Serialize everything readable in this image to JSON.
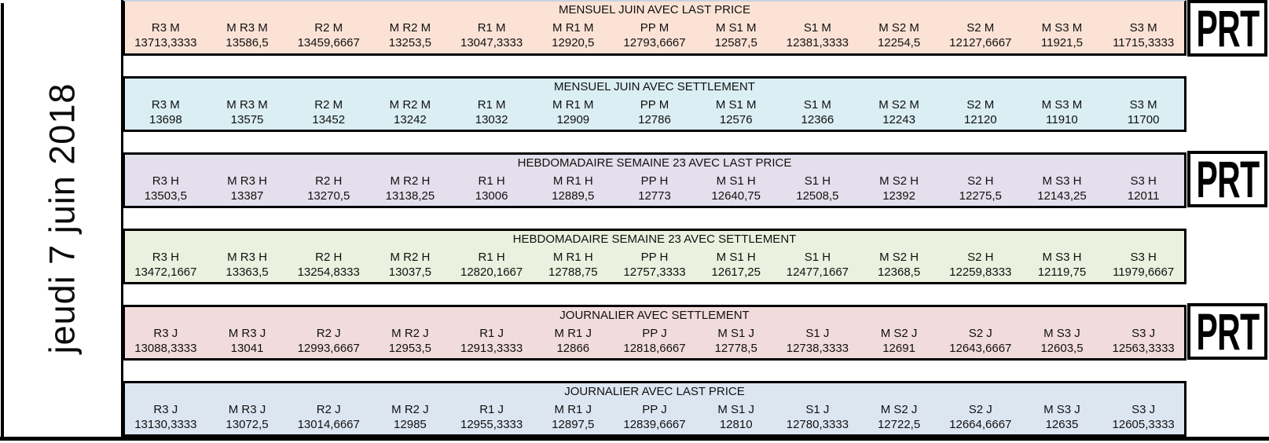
{
  "date_label": "jeudi 7 juin 2018",
  "prt_label": "PRT",
  "colors": {
    "background": "#ffffff",
    "border": "#000000",
    "text": "#111111",
    "band_mensuel_last_price": "#fbe2d5",
    "band_mensuel_settlement": "#daeef3",
    "band_hebdo_last_price": "#e4dfec",
    "band_hebdo_settlement": "#ebf1de",
    "band_journalier_settlement": "#f2dcdb",
    "band_journalier_last_price": "#dce6f1"
  },
  "bands": [
    {
      "name": "mensuel-last-price",
      "title": "MENSUEL JUIN AVEC LAST PRICE",
      "bg": "#fbe2d5",
      "prt": true,
      "headers": [
        "R3 M",
        "M R3 M",
        "R2 M",
        "M R2 M",
        "R1 M",
        "M R1 M",
        "PP M",
        "M S1 M",
        "S1 M",
        "M S2 M",
        "S2 M",
        "M S3 M",
        "S3 M"
      ],
      "values": [
        "13713,3333",
        "13586,5",
        "13459,6667",
        "13253,5",
        "13047,3333",
        "12920,5",
        "12793,6667",
        "12587,5",
        "12381,3333",
        "12254,5",
        "12127,6667",
        "11921,5",
        "11715,3333"
      ]
    },
    {
      "name": "mensuel-settlement",
      "title": "MENSUEL JUIN AVEC SETTLEMENT",
      "bg": "#daeef3",
      "prt": false,
      "headers": [
        "R3 M",
        "M R3 M",
        "R2 M",
        "M R2 M",
        "R1 M",
        "M R1 M",
        "PP M",
        "M S1 M",
        "S1 M",
        "M S2 M",
        "S2 M",
        "M S3 M",
        "S3 M"
      ],
      "values": [
        "13698",
        "13575",
        "13452",
        "13242",
        "13032",
        "12909",
        "12786",
        "12576",
        "12366",
        "12243",
        "12120",
        "11910",
        "11700"
      ]
    },
    {
      "name": "hebdomadaire-last-price",
      "title": "HEBDOMADAIRE SEMAINE 23 AVEC LAST PRICE",
      "bg": "#e4dfec",
      "prt": true,
      "headers": [
        "R3 H",
        "M R3 H",
        "R2 H",
        "M R2 H",
        "R1 H",
        "M R1 H",
        "PP H",
        "M S1 H",
        "S1 H",
        "M S2 H",
        "S2 H",
        "M S3 H",
        "S3 H"
      ],
      "values": [
        "13503,5",
        "13387",
        "13270,5",
        "13138,25",
        "13006",
        "12889,5",
        "12773",
        "12640,75",
        "12508,5",
        "12392",
        "12275,5",
        "12143,25",
        "12011"
      ]
    },
    {
      "name": "hebdomadaire-settlement",
      "title": "HEBDOMADAIRE SEMAINE 23 AVEC SETTLEMENT",
      "bg": "#ebf1de",
      "prt": false,
      "headers": [
        "R3 H",
        "M R3 H",
        "R2 H",
        "M R2 H",
        "R1 H",
        "M R1 H",
        "PP H",
        "M S1 H",
        "S1 H",
        "M S2 H",
        "S2 H",
        "M S3 H",
        "S3 H"
      ],
      "values": [
        "13472,1667",
        "13363,5",
        "13254,8333",
        "13037,5",
        "12820,1667",
        "12788,75",
        "12757,3333",
        "12617,25",
        "12477,1667",
        "12368,5",
        "12259,8333",
        "12119,75",
        "11979,6667"
      ]
    },
    {
      "name": "journalier-settlement",
      "title": "JOURNALIER AVEC SETTLEMENT",
      "bg": "#f2dcdb",
      "prt": true,
      "headers": [
        "R3 J",
        "M R3 J",
        "R2 J",
        "M R2 J",
        "R1 J",
        "M R1 J",
        "PP J",
        "M S1 J",
        "S1 J",
        "M S2 J",
        "S2 J",
        "M S3 J",
        "S3 J"
      ],
      "values": [
        "13088,3333",
        "13041",
        "12993,6667",
        "12953,5",
        "12913,3333",
        "12866",
        "12818,6667",
        "12778,5",
        "12738,3333",
        "12691",
        "12643,6667",
        "12603,5",
        "12563,3333"
      ]
    },
    {
      "name": "journalier-last-price",
      "title": "JOURNALIER AVEC LAST PRICE",
      "bg": "#dce6f1",
      "prt": false,
      "headers": [
        "R3 J",
        "M R3 J",
        "R2 J",
        "M R2 J",
        "R1 J",
        "M R1 J",
        "PP J",
        "M S1 J",
        "S1 J",
        "M S2 J",
        "S2 J",
        "M S3 J",
        "S3 J"
      ],
      "values": [
        "13130,3333",
        "13072,5",
        "13014,6667",
        "12985",
        "12955,3333",
        "12897,5",
        "12839,6667",
        "12810",
        "12780,3333",
        "12722,5",
        "12664,6667",
        "12635",
        "12605,3333"
      ]
    }
  ]
}
